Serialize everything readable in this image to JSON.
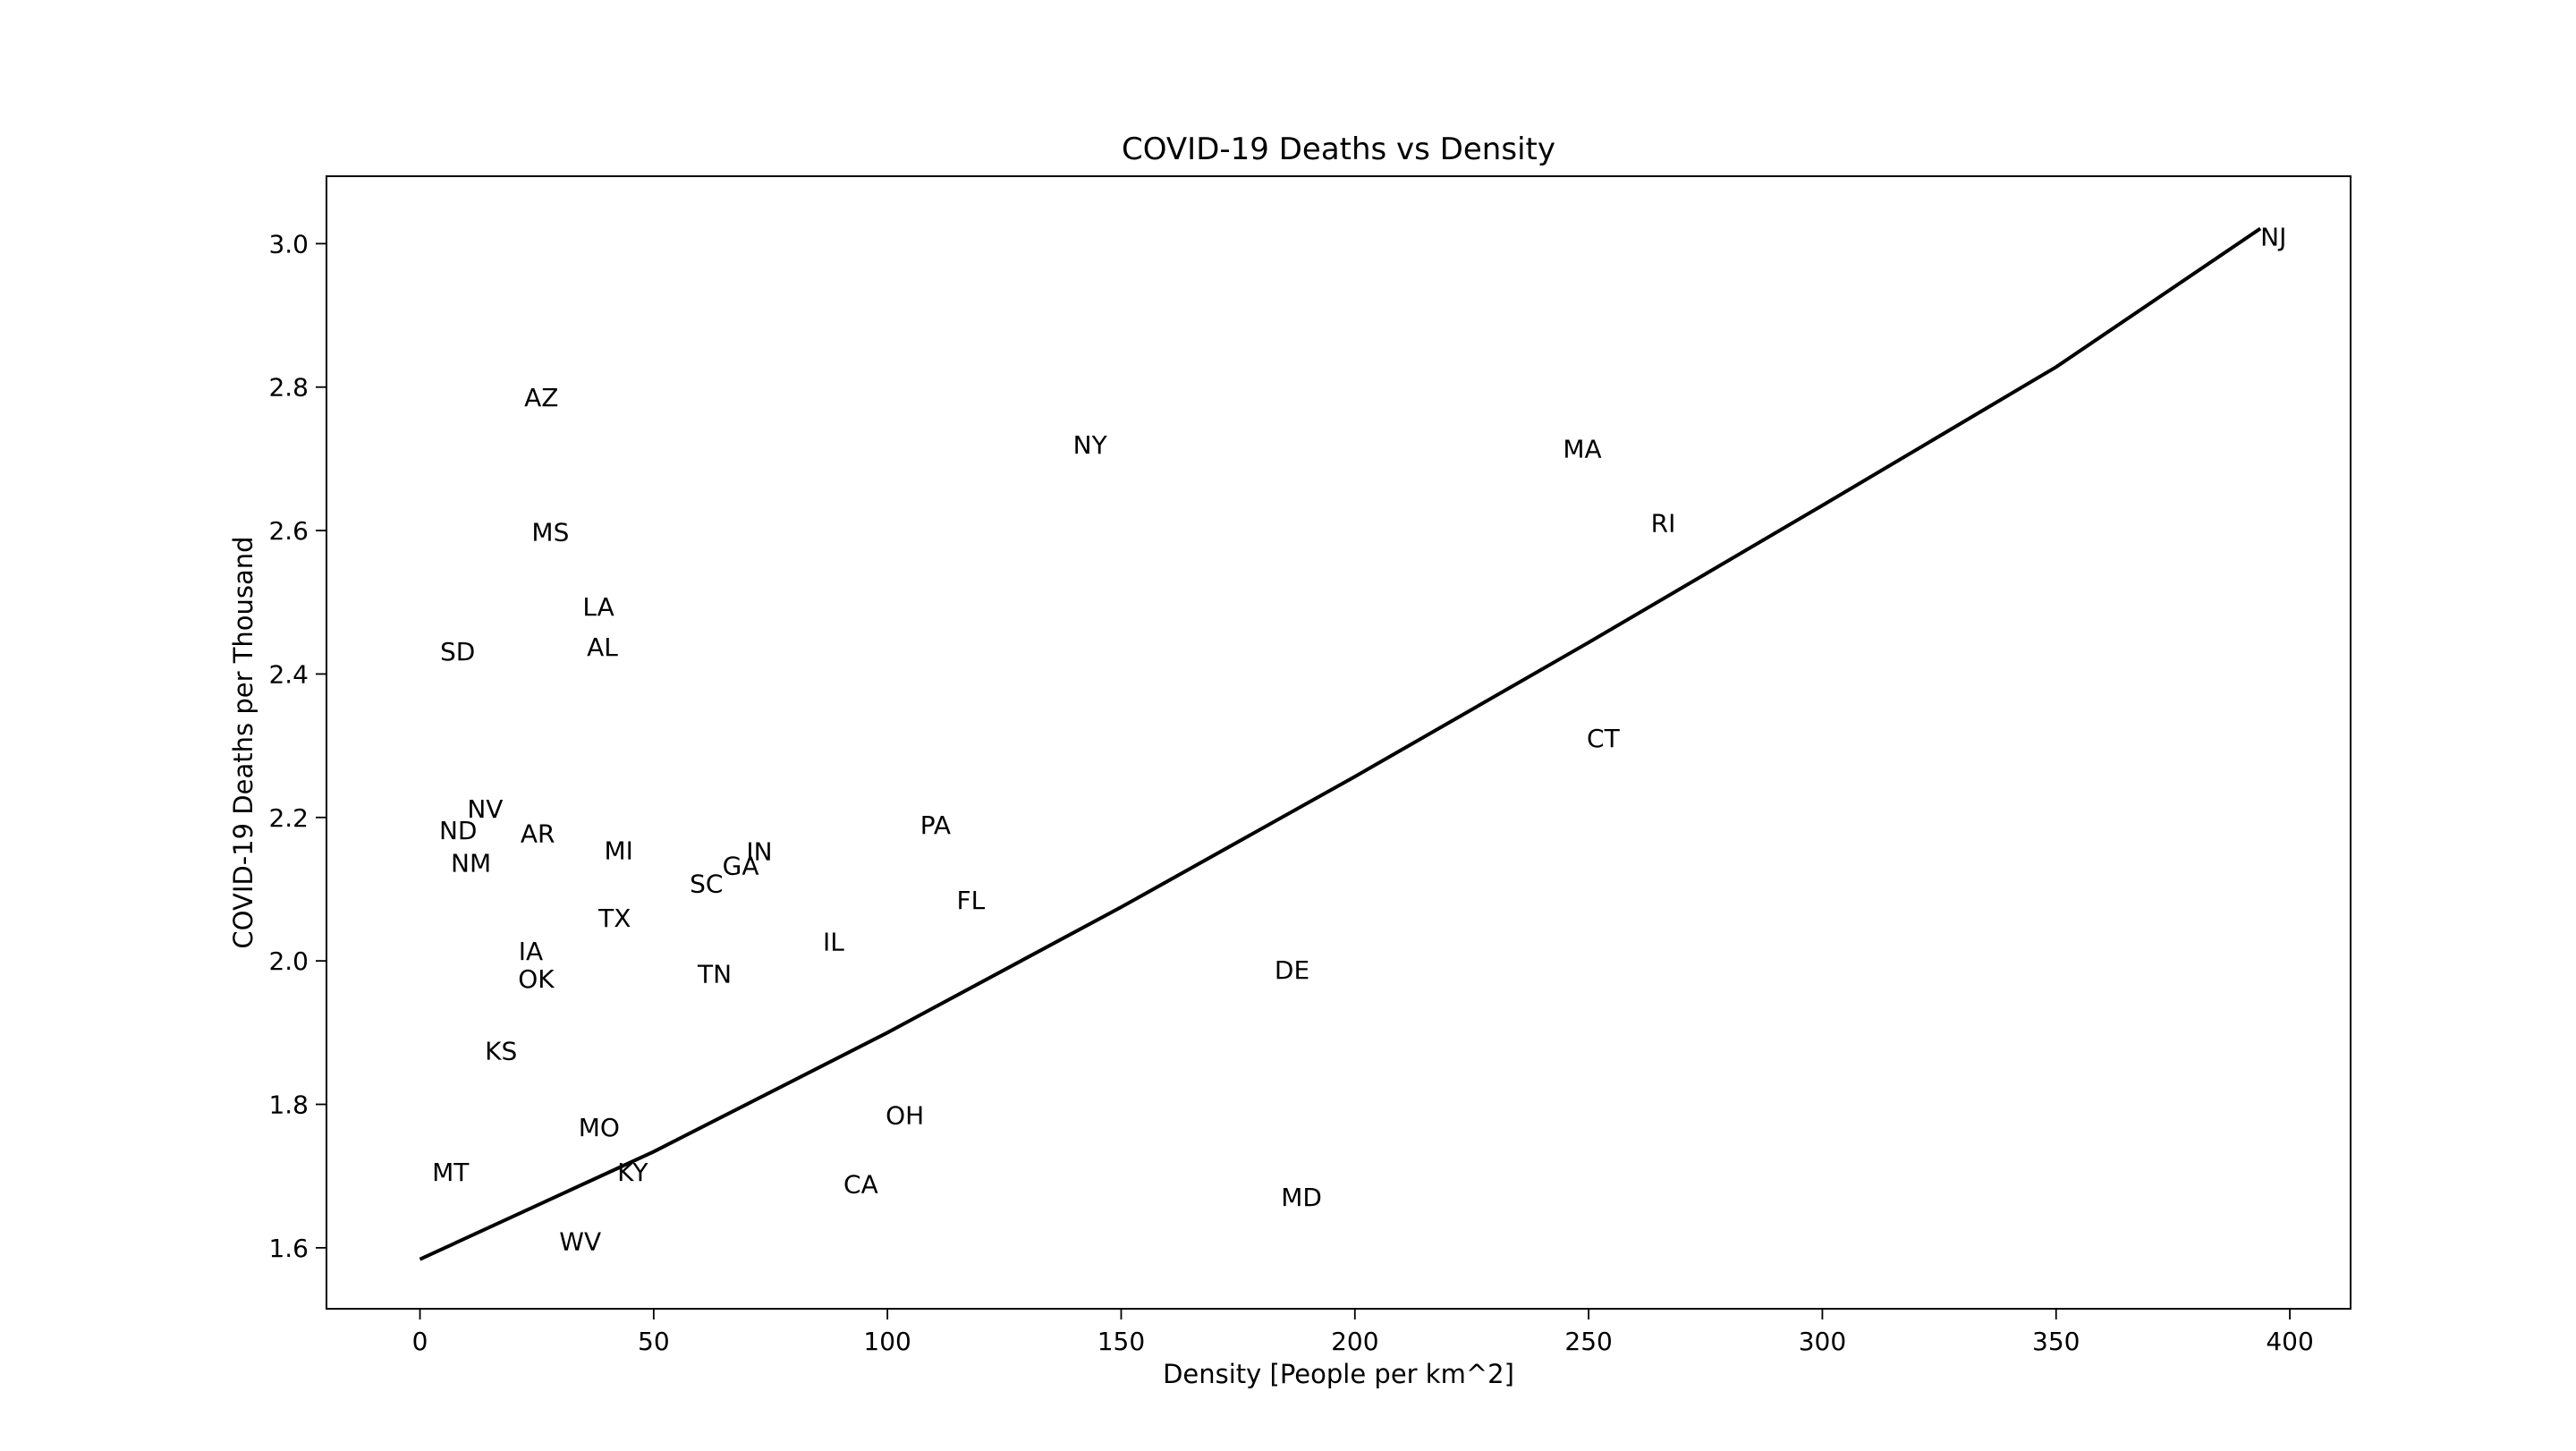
{
  "chart_data": {
    "type": "scatter",
    "title": "COVID-19 Deaths vs Density",
    "xlabel": "Density [People per km^2]",
    "ylabel": "COVID-19 Deaths per Thousand",
    "xlim": [
      -20,
      413
    ],
    "ylim": [
      1.515,
      3.094
    ],
    "xticks": [
      0,
      50,
      100,
      150,
      200,
      250,
      300,
      350,
      400
    ],
    "xtick_labels": [
      "0",
      "50",
      "100",
      "150",
      "200",
      "250",
      "300",
      "350",
      "400"
    ],
    "yticks": [
      1.6,
      1.8,
      2.0,
      2.2,
      2.4,
      2.6,
      2.8,
      3.0
    ],
    "ytick_labels": [
      "1.6",
      "1.8",
      "2.0",
      "2.2",
      "2.4",
      "2.6",
      "2.8",
      "3.0"
    ],
    "grid": false,
    "points": [
      {
        "label": "NJ",
        "x": 393.7,
        "y": 3.01
      },
      {
        "label": "AZ",
        "x": 22.3,
        "y": 2.786
      },
      {
        "label": "NY",
        "x": 139.7,
        "y": 2.72
      },
      {
        "label": "MA",
        "x": 244.5,
        "y": 2.714
      },
      {
        "label": "RI",
        "x": 263.3,
        "y": 2.611
      },
      {
        "label": "MS",
        "x": 23.9,
        "y": 2.598
      },
      {
        "label": "LA",
        "x": 34.8,
        "y": 2.494
      },
      {
        "label": "AL",
        "x": 35.7,
        "y": 2.438
      },
      {
        "label": "SD",
        "x": 4.3,
        "y": 2.432
      },
      {
        "label": "CT",
        "x": 249.6,
        "y": 2.311
      },
      {
        "label": "NV",
        "x": 10.1,
        "y": 2.212
      },
      {
        "label": "PA",
        "x": 107.0,
        "y": 2.19
      },
      {
        "label": "ND",
        "x": 4.1,
        "y": 2.182
      },
      {
        "label": "AR",
        "x": 21.5,
        "y": 2.178
      },
      {
        "label": "MI",
        "x": 39.4,
        "y": 2.154
      },
      {
        "label": "IN",
        "x": 69.8,
        "y": 2.153
      },
      {
        "label": "GA",
        "x": 64.7,
        "y": 2.133
      },
      {
        "label": "NM",
        "x": 6.6,
        "y": 2.137
      },
      {
        "label": "SC",
        "x": 57.7,
        "y": 2.108
      },
      {
        "label": "FL",
        "x": 114.8,
        "y": 2.085
      },
      {
        "label": "TX",
        "x": 38.2,
        "y": 2.06
      },
      {
        "label": "IL",
        "x": 86.2,
        "y": 2.027
      },
      {
        "label": "IA",
        "x": 21.1,
        "y": 2.014
      },
      {
        "label": "DE",
        "x": 182.8,
        "y": 1.988
      },
      {
        "label": "OK",
        "x": 21.0,
        "y": 1.975
      },
      {
        "label": "TN",
        "x": 59.4,
        "y": 1.982
      },
      {
        "label": "KS",
        "x": 13.9,
        "y": 1.875
      },
      {
        "label": "OH",
        "x": 99.6,
        "y": 1.785
      },
      {
        "label": "MO",
        "x": 33.9,
        "y": 1.768
      },
      {
        "label": "MT",
        "x": 2.6,
        "y": 1.706
      },
      {
        "label": "KY",
        "x": 42.2,
        "y": 1.706
      },
      {
        "label": "CA",
        "x": 90.6,
        "y": 1.689
      },
      {
        "label": "MD",
        "x": 184.2,
        "y": 1.671
      },
      {
        "label": "WV",
        "x": 29.8,
        "y": 1.609
      }
    ],
    "trend_line": {
      "x": [
        0,
        50,
        100,
        150,
        200,
        250,
        300,
        350,
        393.7
      ],
      "y": [
        1.584,
        1.734,
        1.9,
        2.075,
        2.257,
        2.444,
        2.635,
        2.828,
        3.021
      ]
    }
  }
}
